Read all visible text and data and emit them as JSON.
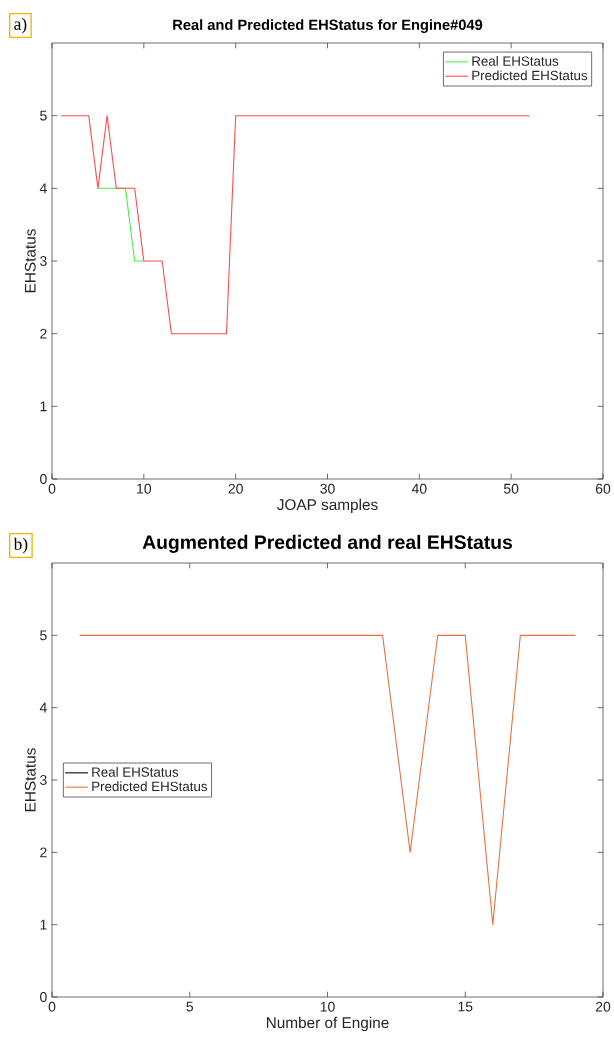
{
  "chart_data": [
    {
      "type": "line",
      "title": "Real and Predicted EHStatus for Engine#049",
      "xlabel": "JOAP samples",
      "ylabel": "EHStatus",
      "annotations": [
        "a)"
      ],
      "x": [
        1,
        2,
        3,
        4,
        5,
        6,
        7,
        8,
        9,
        10,
        11,
        12,
        13,
        14,
        15,
        16,
        17,
        18,
        19,
        20,
        21,
        22,
        23,
        24,
        25,
        26,
        27,
        28,
        29,
        30,
        31,
        32,
        33,
        34,
        35,
        36,
        37,
        38,
        39,
        40,
        41,
        42,
        43,
        44,
        45,
        46,
        47,
        48,
        49,
        50,
        51,
        52
      ],
      "series": [
        {
          "name": "Real EHStatus",
          "color": "#44ee44",
          "values": [
            null,
            null,
            null,
            null,
            4,
            4,
            4,
            4,
            3,
            3,
            null,
            null,
            null,
            null,
            null,
            null,
            null,
            null,
            null,
            null,
            null,
            null,
            null,
            null,
            null,
            null,
            null,
            null,
            null,
            null,
            null,
            null,
            null,
            null,
            null,
            null,
            null,
            null,
            null,
            null,
            null,
            null,
            null,
            null,
            null,
            null,
            null,
            null,
            null,
            null,
            null,
            null
          ]
        },
        {
          "name": "Predicted EHStatus",
          "color": "#ff4a4a",
          "values": [
            5,
            5,
            5,
            5,
            4,
            5,
            4,
            4,
            4,
            3,
            3,
            3,
            2,
            2,
            2,
            2,
            2,
            2,
            2,
            5,
            5,
            5,
            5,
            5,
            5,
            5,
            5,
            5,
            5,
            5,
            5,
            5,
            5,
            5,
            5,
            5,
            5,
            5,
            5,
            5,
            5,
            5,
            5,
            5,
            5,
            5,
            5,
            5,
            5,
            5,
            5,
            5
          ]
        }
      ],
      "xlim": [
        0,
        60
      ],
      "ylim": [
        0,
        6
      ],
      "xticks": [
        0,
        10,
        20,
        30,
        40,
        50,
        60
      ],
      "yticks": [
        0,
        1,
        2,
        3,
        4,
        5
      ],
      "legend": "top right",
      "grid": false
    },
    {
      "type": "line",
      "title": "Augmented Predicted and real EHStatus",
      "xlabel": "Number of Engine",
      "ylabel": "EHStatus",
      "annotations": [
        "b)"
      ],
      "x": [
        1,
        2,
        3,
        4,
        5,
        6,
        7,
        8,
        9,
        10,
        11,
        12,
        13,
        14,
        15,
        16,
        17,
        18,
        19
      ],
      "series": [
        {
          "name": "Real EHStatus",
          "color": "#000000",
          "values": [
            null,
            null,
            null,
            null,
            null,
            null,
            null,
            null,
            null,
            null,
            null,
            null,
            null,
            null,
            null,
            null,
            null,
            null,
            null
          ]
        },
        {
          "name": "Predicted EHStatus",
          "color": "#e8703f",
          "values": [
            5,
            5,
            5,
            5,
            5,
            5,
            5,
            5,
            5,
            5,
            5,
            5,
            2,
            5,
            5,
            1,
            5,
            5,
            5
          ]
        }
      ],
      "xlim": [
        0,
        20
      ],
      "ylim": [
        0,
        6
      ],
      "xticks": [
        0,
        5,
        10,
        15,
        20
      ],
      "yticks": [
        0,
        1,
        2,
        3,
        4,
        5
      ],
      "legend": "left",
      "grid": false
    }
  ]
}
